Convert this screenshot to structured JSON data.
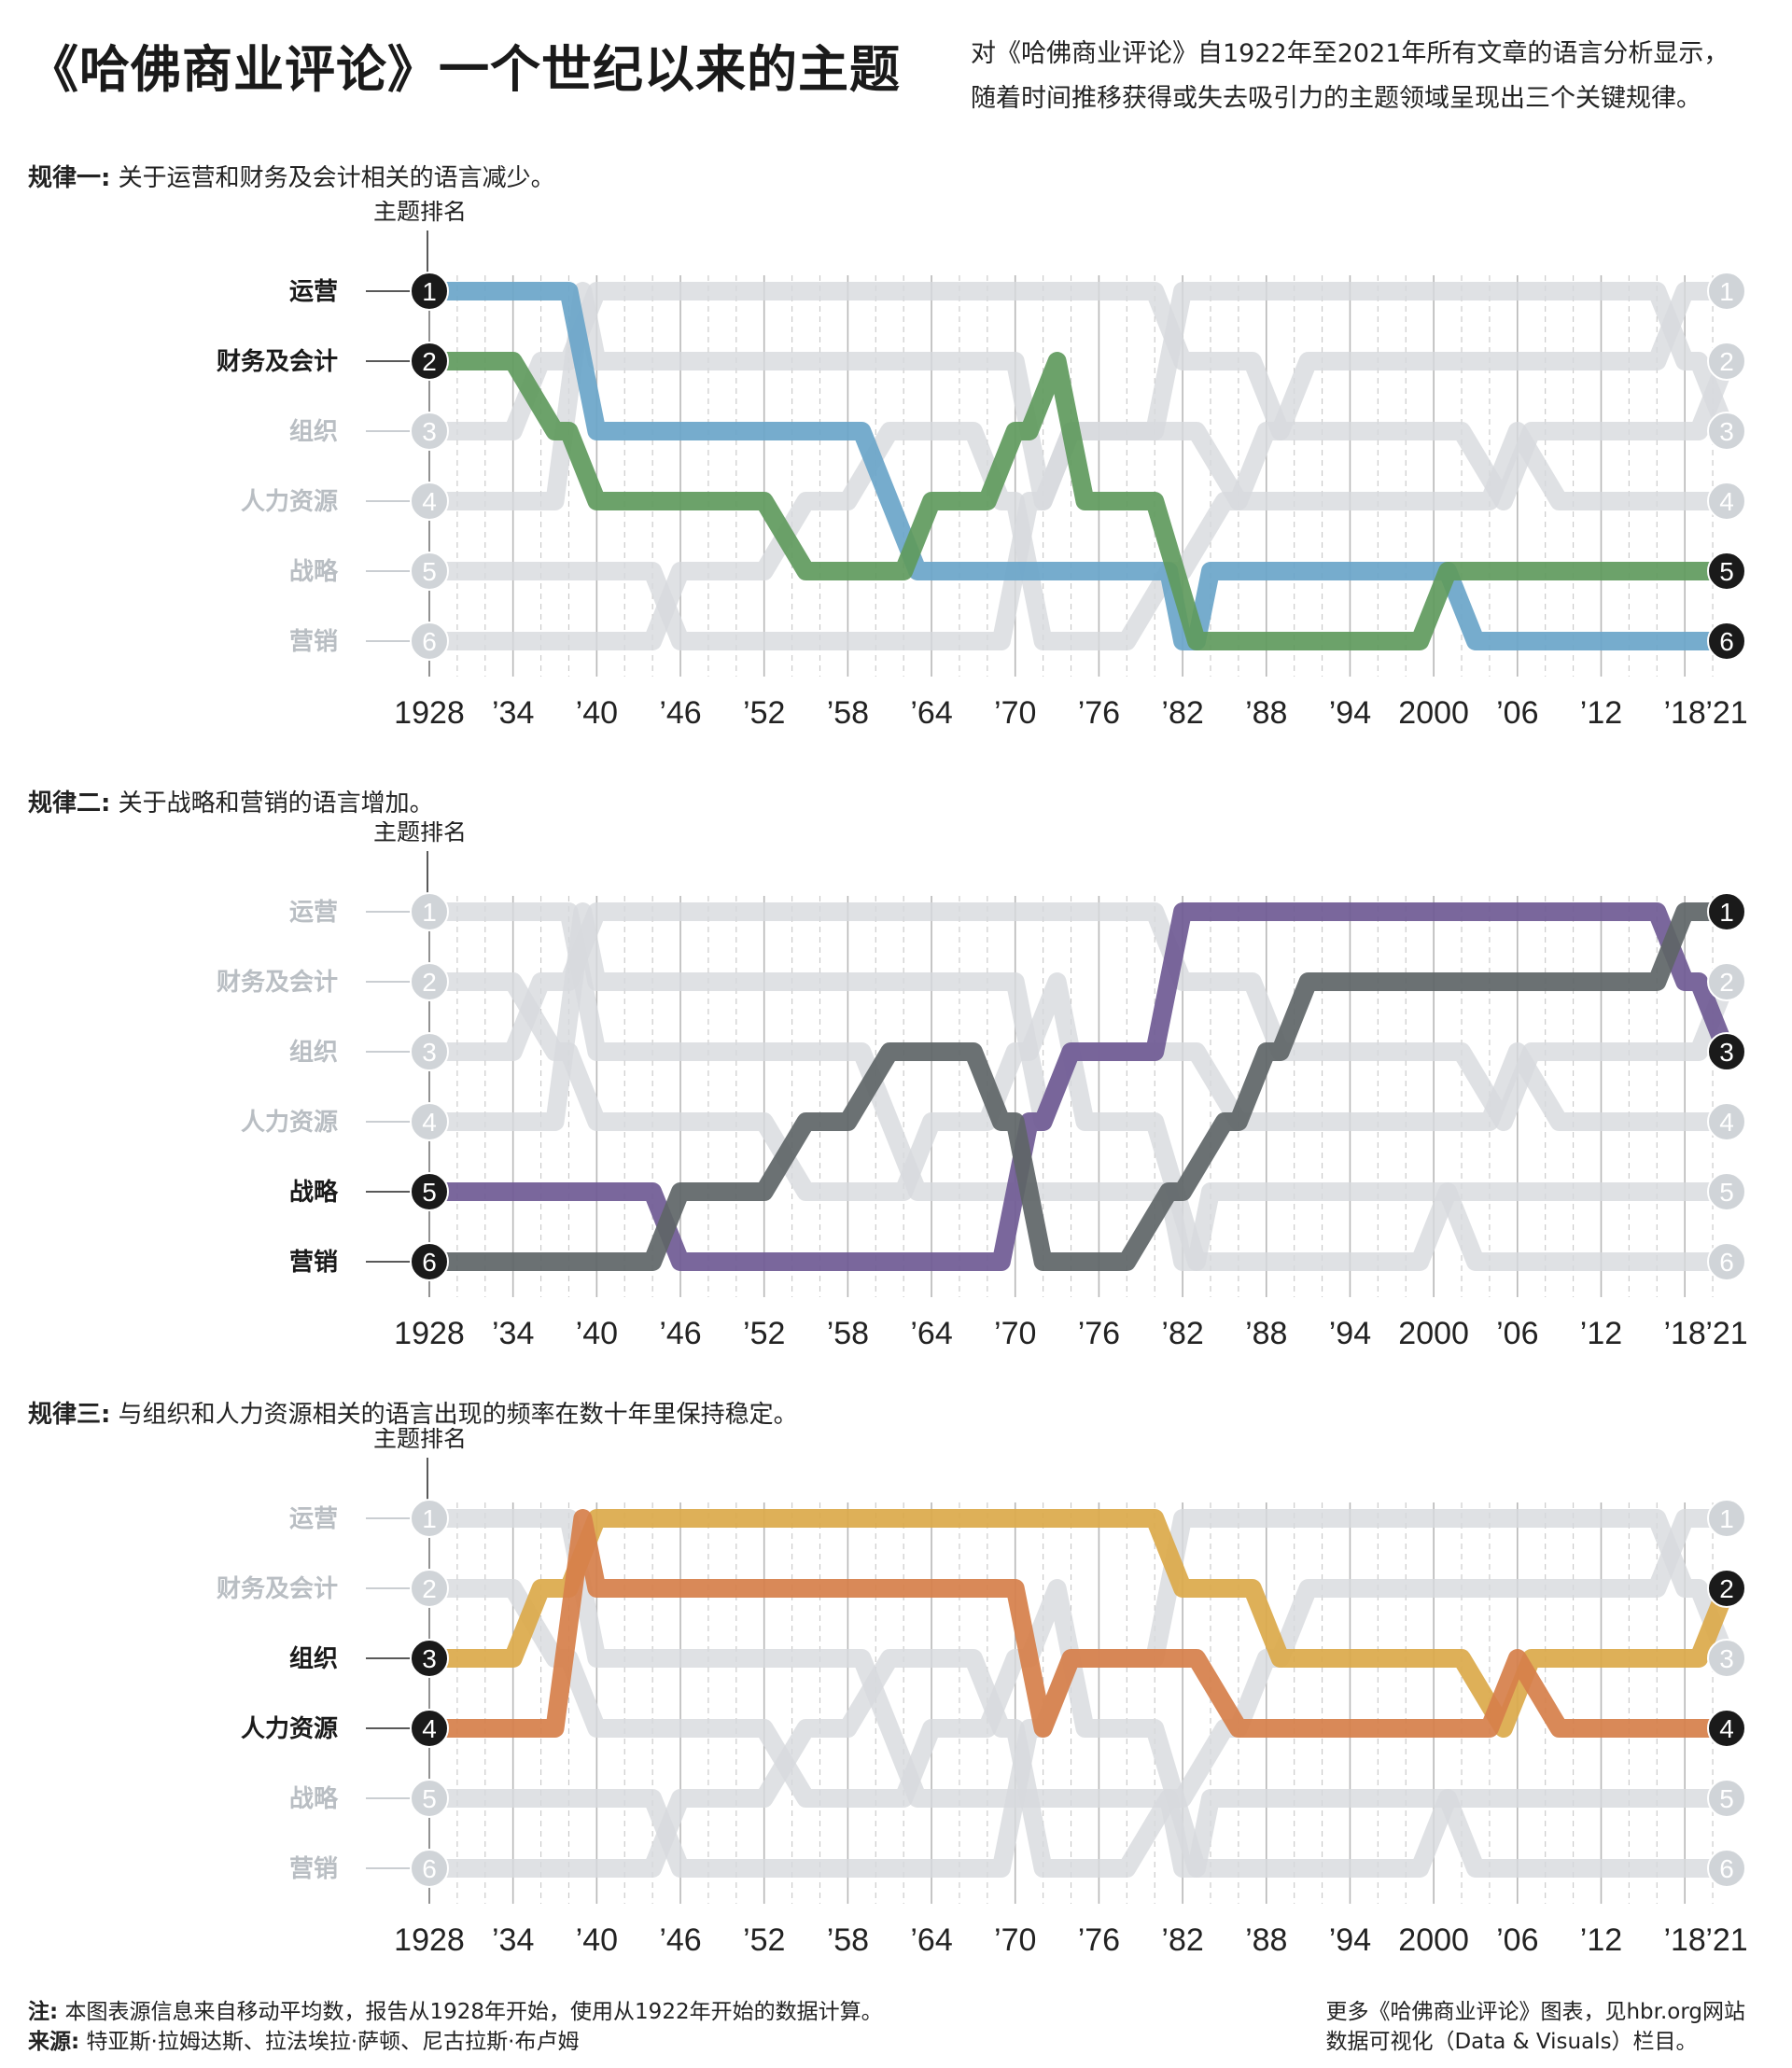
{
  "title": "《哈佛商业评论》一个世纪以来的主题",
  "dek": [
    "对《哈佛商业评论》自1922年至2021年所有文章的语言分析显示，",
    "随着时间推移获得或失去吸引力的主题领域呈现出三个关键规律。"
  ],
  "panels": [
    {
      "label": "规律一:",
      "text": "关于运营和财务及会计相关的语言减少。",
      "highlight": [
        "运营",
        "财务及会计"
      ]
    },
    {
      "label": "规律二:",
      "text": "关于战略和营销的语言增加。",
      "highlight": [
        "战略",
        "营销"
      ]
    },
    {
      "label": "规律三:",
      "text": "与组织和人力资源相关的语言出现的频率在数十年里保持稳定。",
      "highlight": [
        "组织",
        "人力资源"
      ]
    }
  ],
  "rank_label": "主题排名",
  "footer": {
    "note_label": "注:",
    "note": "本图表源信息来自移动平均数，报告从1928年开始，使用从1922年开始的数据计算。",
    "source_label": "来源:",
    "source": "特亚斯·拉姆达斯、拉法埃拉·萨顿、尼古拉斯·布卢姆",
    "more": [
      "更多《哈佛商业评论》图表，见hbr.org网站",
      "数据可视化（Data & Visuals）栏目。"
    ]
  },
  "chart_data": {
    "type": "bump",
    "x_tick_labels": [
      "1928",
      "’34",
      "’40",
      "’46",
      "’52",
      "’58",
      "’64",
      "’70",
      "’76",
      "’82",
      "’88",
      "’94",
      "2000",
      "’06",
      "’12",
      "’18",
      "’21"
    ],
    "x_tick_years": [
      1928,
      1934,
      1940,
      1946,
      1952,
      1958,
      1964,
      1970,
      1976,
      1982,
      1988,
      1994,
      2000,
      2006,
      2012,
      2018,
      2021
    ],
    "y_ranks": [
      1,
      2,
      3,
      4,
      5,
      6
    ],
    "topics": [
      "运营",
      "财务及会计",
      "组织",
      "人力资源",
      "战略",
      "营销"
    ],
    "colors": {
      "运营": "#6aa5c9",
      "财务及会计": "#5f9a5d",
      "组织": "#dba94a",
      "人力资源": "#d67f4a",
      "战略": "#6f5a94",
      "营销": "#5e6567",
      "background_line": "#d7dadd",
      "gridline": "#9a9a9a"
    },
    "series": [
      {
        "name": "运营",
        "points": [
          [
            1928,
            1
          ],
          [
            1938,
            1
          ],
          [
            1940,
            3
          ],
          [
            1959,
            3
          ],
          [
            1961,
            4
          ],
          [
            1963,
            5
          ],
          [
            1981,
            5
          ],
          [
            1982,
            6
          ],
          [
            1983,
            6
          ],
          [
            1984,
            5
          ],
          [
            2001,
            5
          ],
          [
            2003,
            6
          ],
          [
            2021,
            6
          ]
        ]
      },
      {
        "name": "财务及会计",
        "points": [
          [
            1928,
            2
          ],
          [
            1934,
            2
          ],
          [
            1937,
            3
          ],
          [
            1938,
            3
          ],
          [
            1940,
            4
          ],
          [
            1952,
            4
          ],
          [
            1955,
            5
          ],
          [
            1962,
            5
          ],
          [
            1964,
            4
          ],
          [
            1968,
            4
          ],
          [
            1970,
            3
          ],
          [
            1971,
            3
          ],
          [
            1973,
            2
          ],
          [
            1975,
            4
          ],
          [
            1980,
            4
          ],
          [
            1983,
            6
          ],
          [
            1999,
            6
          ],
          [
            2001,
            5
          ],
          [
            2021,
            5
          ]
        ]
      },
      {
        "name": "组织",
        "points": [
          [
            1928,
            3
          ],
          [
            1934,
            3
          ],
          [
            1936,
            2
          ],
          [
            1938,
            2
          ],
          [
            1940,
            1
          ],
          [
            1980,
            1
          ],
          [
            1982,
            2
          ],
          [
            1987,
            2
          ],
          [
            1989,
            3
          ],
          [
            2002,
            3
          ],
          [
            2005,
            4
          ],
          [
            2007,
            3
          ],
          [
            2019,
            3
          ],
          [
            2021,
            2
          ]
        ]
      },
      {
        "name": "人力资源",
        "points": [
          [
            1928,
            4
          ],
          [
            1937,
            4
          ],
          [
            1939,
            1
          ],
          [
            1940,
            2
          ],
          [
            1970,
            2
          ],
          [
            1972,
            4
          ],
          [
            1974,
            3
          ],
          [
            1983,
            3
          ],
          [
            1986,
            4
          ],
          [
            2004,
            4
          ],
          [
            2006,
            3
          ],
          [
            2009,
            4
          ],
          [
            2021,
            4
          ]
        ]
      },
      {
        "name": "战略",
        "points": [
          [
            1928,
            5
          ],
          [
            1944,
            5
          ],
          [
            1946,
            6
          ],
          [
            1969,
            6
          ],
          [
            1971,
            4
          ],
          [
            1972,
            4
          ],
          [
            1974,
            3
          ],
          [
            1980,
            3
          ],
          [
            1982,
            1
          ],
          [
            2016,
            1
          ],
          [
            2018,
            2
          ],
          [
            2019,
            2
          ],
          [
            2021,
            3
          ]
        ]
      },
      {
        "name": "营销",
        "points": [
          [
            1928,
            6
          ],
          [
            1944,
            6
          ],
          [
            1946,
            5
          ],
          [
            1952,
            5
          ],
          [
            1955,
            4
          ],
          [
            1958,
            4
          ],
          [
            1961,
            3
          ],
          [
            1967,
            3
          ],
          [
            1969,
            4
          ],
          [
            1970,
            4
          ],
          [
            1972,
            6
          ],
          [
            1978,
            6
          ],
          [
            1981,
            5
          ],
          [
            1982,
            5
          ],
          [
            1985,
            4
          ],
          [
            1986,
            4
          ],
          [
            1988,
            3
          ],
          [
            1989,
            3
          ],
          [
            1991,
            2
          ],
          [
            2016,
            2
          ],
          [
            2018,
            1
          ],
          [
            2021,
            1
          ]
        ]
      }
    ],
    "highlighted_by_panel": [
      [
        "运营",
        "财务及会计"
      ],
      [
        "战略",
        "营销"
      ],
      [
        "组织",
        "人力资源"
      ]
    ]
  }
}
